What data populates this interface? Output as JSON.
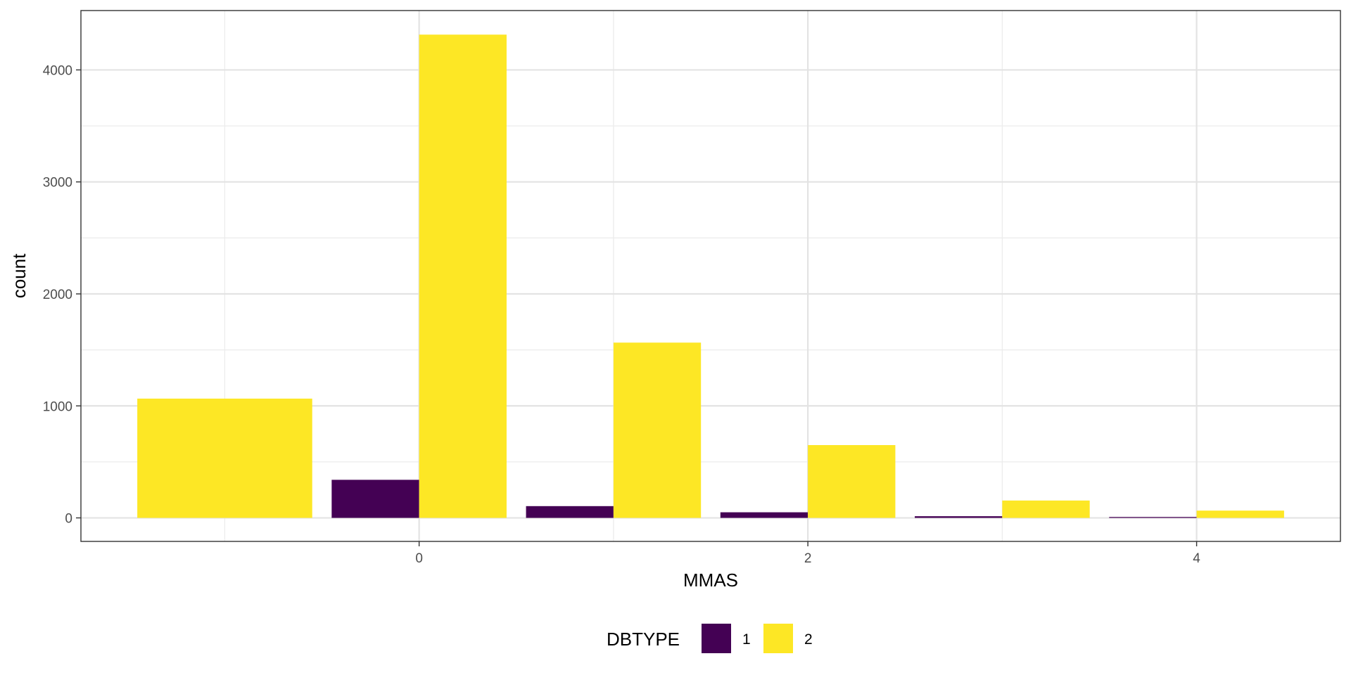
{
  "chart_data": {
    "type": "bar",
    "title": "",
    "xlabel": "MMAS",
    "ylabel": "count",
    "x": [
      -1,
      0,
      1,
      2,
      3,
      4
    ],
    "x_ticks": [
      0,
      2,
      4
    ],
    "y_ticks": [
      0,
      1000,
      2000,
      3000,
      4000
    ],
    "xlim": [
      -1.74,
      4.74
    ],
    "ylim": [
      -210,
      4530
    ],
    "grid": true,
    "legend": {
      "title": "DBTYPE",
      "position": "bottom"
    },
    "series": [
      {
        "name": "1",
        "color": "#440154",
        "values": [
          0,
          340,
          105,
          50,
          15,
          8
        ]
      },
      {
        "name": "2",
        "color": "#FDE725",
        "values": [
          1065,
          4315,
          1565,
          650,
          155,
          65
        ]
      }
    ]
  }
}
